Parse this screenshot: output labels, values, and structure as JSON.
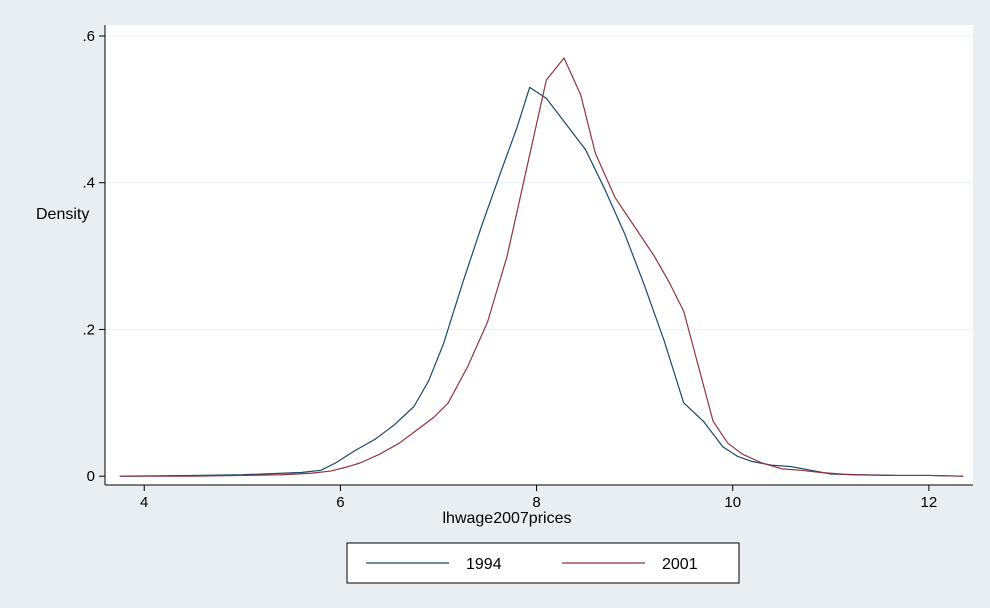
{
  "chart_data": {
    "type": "line",
    "xlabel": "lhwage2007prices",
    "ylabel": "Density",
    "xlim": [
      3.6,
      12.45
    ],
    "ylim": [
      -0.012,
      0.615
    ],
    "xticks": [
      4,
      6,
      8,
      10,
      12
    ],
    "yticks": [
      0,
      0.2,
      0.4,
      0.6
    ],
    "xtick_labels": [
      "4",
      "6",
      "8",
      "10",
      "12"
    ],
    "ytick_labels": [
      "0",
      ".2",
      ".4",
      ".6"
    ],
    "grid": "horizontal",
    "legend_position": "bottom",
    "series": [
      {
        "name": "1994",
        "color": "#1a476f",
        "x": [
          3.75,
          4.5,
          5.0,
          5.4,
          5.6,
          5.8,
          5.95,
          6.15,
          6.35,
          6.55,
          6.75,
          6.9,
          7.05,
          7.25,
          7.45,
          7.65,
          7.8,
          7.93,
          8.1,
          8.3,
          8.5,
          8.7,
          8.9,
          9.1,
          9.3,
          9.5,
          9.7,
          9.9,
          10.05,
          10.2,
          10.4,
          10.6,
          10.8,
          11.0,
          11.3,
          11.7,
          12.0,
          12.35
        ],
        "y": [
          0.0,
          0.001,
          0.002,
          0.004,
          0.005,
          0.008,
          0.018,
          0.035,
          0.05,
          0.07,
          0.095,
          0.13,
          0.18,
          0.265,
          0.345,
          0.42,
          0.475,
          0.53,
          0.515,
          0.48,
          0.445,
          0.39,
          0.33,
          0.26,
          0.185,
          0.1,
          0.075,
          0.04,
          0.027,
          0.02,
          0.015,
          0.013,
          0.008,
          0.003,
          0.002,
          0.001,
          0.001,
          0.0
        ]
      },
      {
        "name": "2001",
        "color": "#90353b",
        "x": [
          3.75,
          4.5,
          5.0,
          5.4,
          5.7,
          5.9,
          6.05,
          6.2,
          6.4,
          6.6,
          6.8,
          6.95,
          7.1,
          7.3,
          7.5,
          7.7,
          7.9,
          8.1,
          8.28,
          8.45,
          8.6,
          8.8,
          9.0,
          9.2,
          9.35,
          9.5,
          9.65,
          9.8,
          9.95,
          10.1,
          10.3,
          10.5,
          10.7,
          10.9,
          11.2,
          11.6,
          12.0,
          12.35
        ],
        "y": [
          0.0,
          0.0,
          0.001,
          0.002,
          0.004,
          0.007,
          0.012,
          0.018,
          0.03,
          0.045,
          0.065,
          0.08,
          0.1,
          0.15,
          0.21,
          0.3,
          0.42,
          0.54,
          0.57,
          0.52,
          0.44,
          0.38,
          0.34,
          0.3,
          0.265,
          0.225,
          0.15,
          0.075,
          0.045,
          0.03,
          0.018,
          0.01,
          0.008,
          0.005,
          0.002,
          0.001,
          0.001,
          0.0
        ]
      }
    ]
  }
}
